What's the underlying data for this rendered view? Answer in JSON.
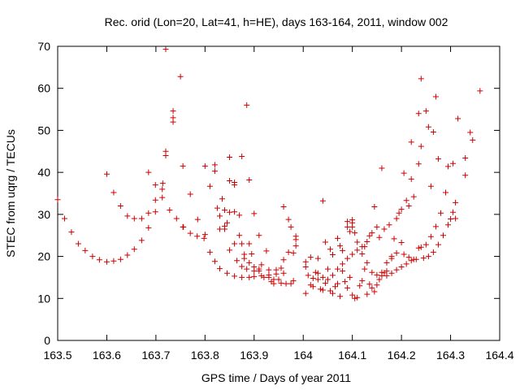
{
  "chart_data": {
    "type": "scatter",
    "title": "Rec. orid (Lon=20, Lat=41, h=HE), days 163-164, 2011, window 002",
    "xlabel": "GPS time / Days of year 2011",
    "ylabel": "STEC from uqrg / TECUs",
    "xlim": [
      163.5,
      164.4
    ],
    "ylim": [
      0,
      70
    ],
    "xticks": [
      163.5,
      163.6,
      163.7,
      163.8,
      163.9,
      164.0,
      164.1,
      164.2,
      164.3,
      164.4
    ],
    "xtick_labels": [
      "163.5",
      "163.6",
      "163.7",
      "163.8",
      "163.9",
      "164",
      "164.1",
      "164.2",
      "164.3",
      "164.4"
    ],
    "yticks": [
      0,
      10,
      20,
      30,
      40,
      50,
      60,
      70
    ],
    "ytick_labels": [
      "0",
      "10",
      "20",
      "30",
      "40",
      "50",
      "60",
      "70"
    ],
    "grid": false,
    "legend": "none",
    "marker": "+",
    "color": "#cc0000",
    "points": [
      [
        163.5,
        33.5
      ],
      [
        163.514,
        29
      ],
      [
        163.528,
        25.8
      ],
      [
        163.542,
        23
      ],
      [
        163.556,
        21.4
      ],
      [
        163.571,
        20
      ],
      [
        163.585,
        19.2
      ],
      [
        163.6,
        18.7
      ],
      [
        163.614,
        18.9
      ],
      [
        163.628,
        19.3
      ],
      [
        163.642,
        20.3
      ],
      [
        163.656,
        21.7
      ],
      [
        163.671,
        23.8
      ],
      [
        163.685,
        26.8
      ],
      [
        163.699,
        30.6
      ],
      [
        163.713,
        36
      ],
      [
        163.72,
        69.3
      ],
      [
        163.728,
        31
      ],
      [
        163.742,
        29
      ],
      [
        163.756,
        27
      ],
      [
        163.77,
        25.5
      ],
      [
        163.784,
        24.8
      ],
      [
        163.798,
        24.3
      ],
      [
        163.6,
        39.6
      ],
      [
        163.614,
        35.2
      ],
      [
        163.628,
        32
      ],
      [
        163.642,
        29.6
      ],
      [
        163.656,
        29
      ],
      [
        163.671,
        29
      ],
      [
        163.685,
        30.3
      ],
      [
        163.699,
        33.4
      ],
      [
        163.714,
        37.4
      ],
      [
        163.72,
        44
      ],
      [
        163.72,
        45
      ],
      [
        163.735,
        52
      ],
      [
        163.735,
        53
      ],
      [
        163.735,
        54.6
      ],
      [
        163.75,
        62.8
      ],
      [
        163.755,
        41.5
      ],
      [
        163.77,
        34.8
      ],
      [
        163.785,
        28.8
      ],
      [
        163.8,
        41.5
      ],
      [
        163.685,
        40
      ],
      [
        163.699,
        37
      ],
      [
        163.713,
        34
      ],
      [
        163.755,
        27
      ],
      [
        163.8,
        25.2
      ],
      [
        163.81,
        36.7
      ],
      [
        163.82,
        41.8
      ],
      [
        163.82,
        40.3
      ],
      [
        163.83,
        29.6
      ],
      [
        163.84,
        27.2
      ],
      [
        163.85,
        30.5
      ],
      [
        163.86,
        30.6
      ],
      [
        163.87,
        29.8
      ],
      [
        163.885,
        56
      ],
      [
        163.89,
        38.2
      ],
      [
        163.81,
        21
      ],
      [
        163.82,
        18.8
      ],
      [
        163.83,
        17.1
      ],
      [
        163.845,
        16
      ],
      [
        163.86,
        15.3
      ],
      [
        163.875,
        15
      ],
      [
        163.89,
        15
      ],
      [
        163.9,
        15.2
      ],
      [
        163.915,
        15.4
      ],
      [
        163.93,
        15.6
      ],
      [
        163.945,
        15.8
      ],
      [
        163.96,
        16
      ],
      [
        163.825,
        31.5
      ],
      [
        163.835,
        33.7
      ],
      [
        163.84,
        31
      ],
      [
        163.845,
        28
      ],
      [
        163.85,
        43.6
      ],
      [
        163.85,
        38
      ],
      [
        163.86,
        37.6
      ],
      [
        163.86,
        37
      ],
      [
        163.875,
        43.8
      ],
      [
        163.875,
        23
      ],
      [
        163.87,
        25
      ],
      [
        163.86,
        23
      ],
      [
        163.85,
        21.5
      ],
      [
        163.84,
        26.5
      ],
      [
        163.83,
        26.5
      ],
      [
        163.865,
        19
      ],
      [
        163.875,
        17.6
      ],
      [
        163.885,
        17
      ],
      [
        163.89,
        23
      ],
      [
        163.895,
        20.6
      ],
      [
        163.9,
        30.2
      ],
      [
        163.91,
        25
      ],
      [
        163.91,
        17
      ],
      [
        163.915,
        18
      ],
      [
        163.925,
        21.3
      ],
      [
        163.93,
        16.8
      ],
      [
        163.935,
        14
      ],
      [
        163.94,
        13.5
      ],
      [
        163.945,
        16.8
      ],
      [
        163.955,
        17.2
      ],
      [
        163.955,
        13.6
      ],
      [
        163.965,
        13.5
      ],
      [
        163.975,
        13.5
      ],
      [
        163.98,
        14.2
      ],
      [
        163.98,
        20.8
      ],
      [
        163.985,
        22.5
      ],
      [
        163.985,
        24.8
      ],
      [
        163.985,
        24
      ],
      [
        163.88,
        20.5
      ],
      [
        163.88,
        19.5
      ],
      [
        163.89,
        18.5
      ],
      [
        163.9,
        17.5
      ],
      [
        163.9,
        16.5
      ],
      [
        163.91,
        16.5
      ],
      [
        163.92,
        15
      ],
      [
        163.93,
        15
      ],
      [
        163.94,
        14.5
      ],
      [
        163.95,
        14.5
      ],
      [
        163.96,
        19.2
      ],
      [
        163.96,
        31.8
      ],
      [
        163.97,
        28.8
      ],
      [
        163.975,
        27
      ],
      [
        163.97,
        21
      ],
      [
        164.03,
        19.5
      ],
      [
        164.04,
        33.2
      ],
      [
        164.045,
        23.4
      ],
      [
        164.055,
        21.7
      ],
      [
        164.06,
        20.4
      ],
      [
        164.07,
        24.3
      ],
      [
        164.075,
        22.5
      ],
      [
        164.08,
        21.4
      ],
      [
        164.09,
        28.3
      ],
      [
        164.09,
        27
      ],
      [
        164.095,
        25.9
      ],
      [
        164.1,
        28.7
      ],
      [
        164.1,
        28
      ],
      [
        164.1,
        27
      ],
      [
        164.105,
        25.6
      ],
      [
        164.11,
        23.4
      ],
      [
        164.12,
        20.6
      ],
      [
        164.125,
        22.3
      ],
      [
        164.13,
        23.5
      ],
      [
        164.135,
        24.9
      ],
      [
        164.14,
        25.6
      ],
      [
        164.145,
        31.8
      ],
      [
        164.15,
        27
      ],
      [
        164.16,
        41
      ],
      [
        164.005,
        18.7
      ],
      [
        164.005,
        17.5
      ],
      [
        164.005,
        11.2
      ],
      [
        164.015,
        19.8
      ],
      [
        164.015,
        13.2
      ],
      [
        164.02,
        12.8
      ],
      [
        164.025,
        16.2
      ],
      [
        164.03,
        14.5
      ],
      [
        164.035,
        12.2
      ],
      [
        164.04,
        12
      ],
      [
        164.045,
        13.6
      ],
      [
        164.05,
        17
      ],
      [
        164.055,
        11.8
      ],
      [
        164.06,
        11.2
      ],
      [
        164.065,
        12.8
      ],
      [
        164.07,
        13.5
      ],
      [
        164.075,
        10.5
      ],
      [
        164.08,
        16.5
      ],
      [
        164.085,
        14
      ],
      [
        164.09,
        12.5
      ],
      [
        164.095,
        15
      ],
      [
        164.1,
        10.8
      ],
      [
        164.105,
        10
      ],
      [
        164.11,
        10.2
      ],
      [
        164.115,
        13
      ],
      [
        164.12,
        14.2
      ],
      [
        164.125,
        17
      ],
      [
        164.13,
        11
      ],
      [
        164.135,
        13.4
      ],
      [
        164.14,
        12.5
      ],
      [
        164.145,
        11.6
      ],
      [
        164.15,
        13.2
      ],
      [
        164.155,
        14.5
      ],
      [
        164.16,
        15.4
      ],
      [
        164.165,
        16.1
      ],
      [
        164.17,
        16.5
      ],
      [
        164.01,
        15.5
      ],
      [
        164.02,
        14.8
      ],
      [
        164.03,
        16
      ],
      [
        164.04,
        15
      ],
      [
        164.05,
        14.5
      ],
      [
        164.06,
        15.5
      ],
      [
        164.07,
        17
      ],
      [
        164.08,
        18.2
      ],
      [
        164.09,
        19.5
      ],
      [
        164.1,
        20.5
      ],
      [
        164.11,
        21.5
      ],
      [
        164.12,
        22.3
      ],
      [
        164.13,
        18.5
      ],
      [
        164.14,
        16.2
      ],
      [
        164.15,
        15.6
      ],
      [
        164.16,
        16.2
      ],
      [
        164.17,
        18.5
      ],
      [
        164.18,
        20
      ],
      [
        164.19,
        20.8
      ],
      [
        164.2,
        23.3
      ],
      [
        164.155,
        24.5
      ],
      [
        164.165,
        26.5
      ],
      [
        164.175,
        27.5
      ],
      [
        164.18,
        19.5
      ],
      [
        164.185,
        24.2
      ],
      [
        164.19,
        29
      ],
      [
        164.195,
        30.3
      ],
      [
        164.2,
        31.2
      ],
      [
        164.205,
        39.8
      ],
      [
        164.21,
        33.3
      ],
      [
        164.215,
        32
      ],
      [
        164.22,
        38.4
      ],
      [
        164.22,
        47.2
      ],
      [
        164.225,
        34.2
      ],
      [
        164.235,
        54
      ],
      [
        164.235,
        42
      ],
      [
        164.24,
        62.3
      ],
      [
        164.24,
        46.2
      ],
      [
        164.25,
        54.6
      ],
      [
        164.255,
        50.8
      ],
      [
        164.26,
        36.7
      ],
      [
        164.265,
        49.6
      ],
      [
        164.27,
        58
      ],
      [
        164.275,
        43.2
      ],
      [
        164.17,
        15.4
      ],
      [
        164.18,
        16
      ],
      [
        164.19,
        16.8
      ],
      [
        164.2,
        17.5
      ],
      [
        164.21,
        18.2
      ],
      [
        164.22,
        19
      ],
      [
        164.23,
        19.3
      ],
      [
        164.24,
        22.2
      ],
      [
        164.25,
        22.8
      ],
      [
        164.26,
        24.7
      ],
      [
        164.27,
        27.1
      ],
      [
        164.28,
        30.3
      ],
      [
        164.29,
        35.2
      ],
      [
        164.295,
        41.4
      ],
      [
        164.3,
        28.9
      ],
      [
        164.305,
        42.1
      ],
      [
        164.31,
        32.8
      ],
      [
        164.315,
        52.8
      ],
      [
        164.33,
        39.3
      ],
      [
        164.33,
        43.4
      ],
      [
        164.34,
        49.5
      ],
      [
        164.345,
        47.7
      ],
      [
        164.36,
        59.4
      ],
      [
        164.205,
        20.5
      ],
      [
        164.215,
        19.8
      ],
      [
        164.225,
        19.3
      ],
      [
        164.235,
        22
      ],
      [
        164.245,
        19.6
      ],
      [
        164.255,
        20
      ],
      [
        164.265,
        21
      ],
      [
        164.275,
        22.8
      ],
      [
        164.285,
        25
      ],
      [
        164.295,
        27.5
      ],
      [
        164.305,
        30.5
      ],
      [
        164.31,
        29
      ]
    ]
  }
}
